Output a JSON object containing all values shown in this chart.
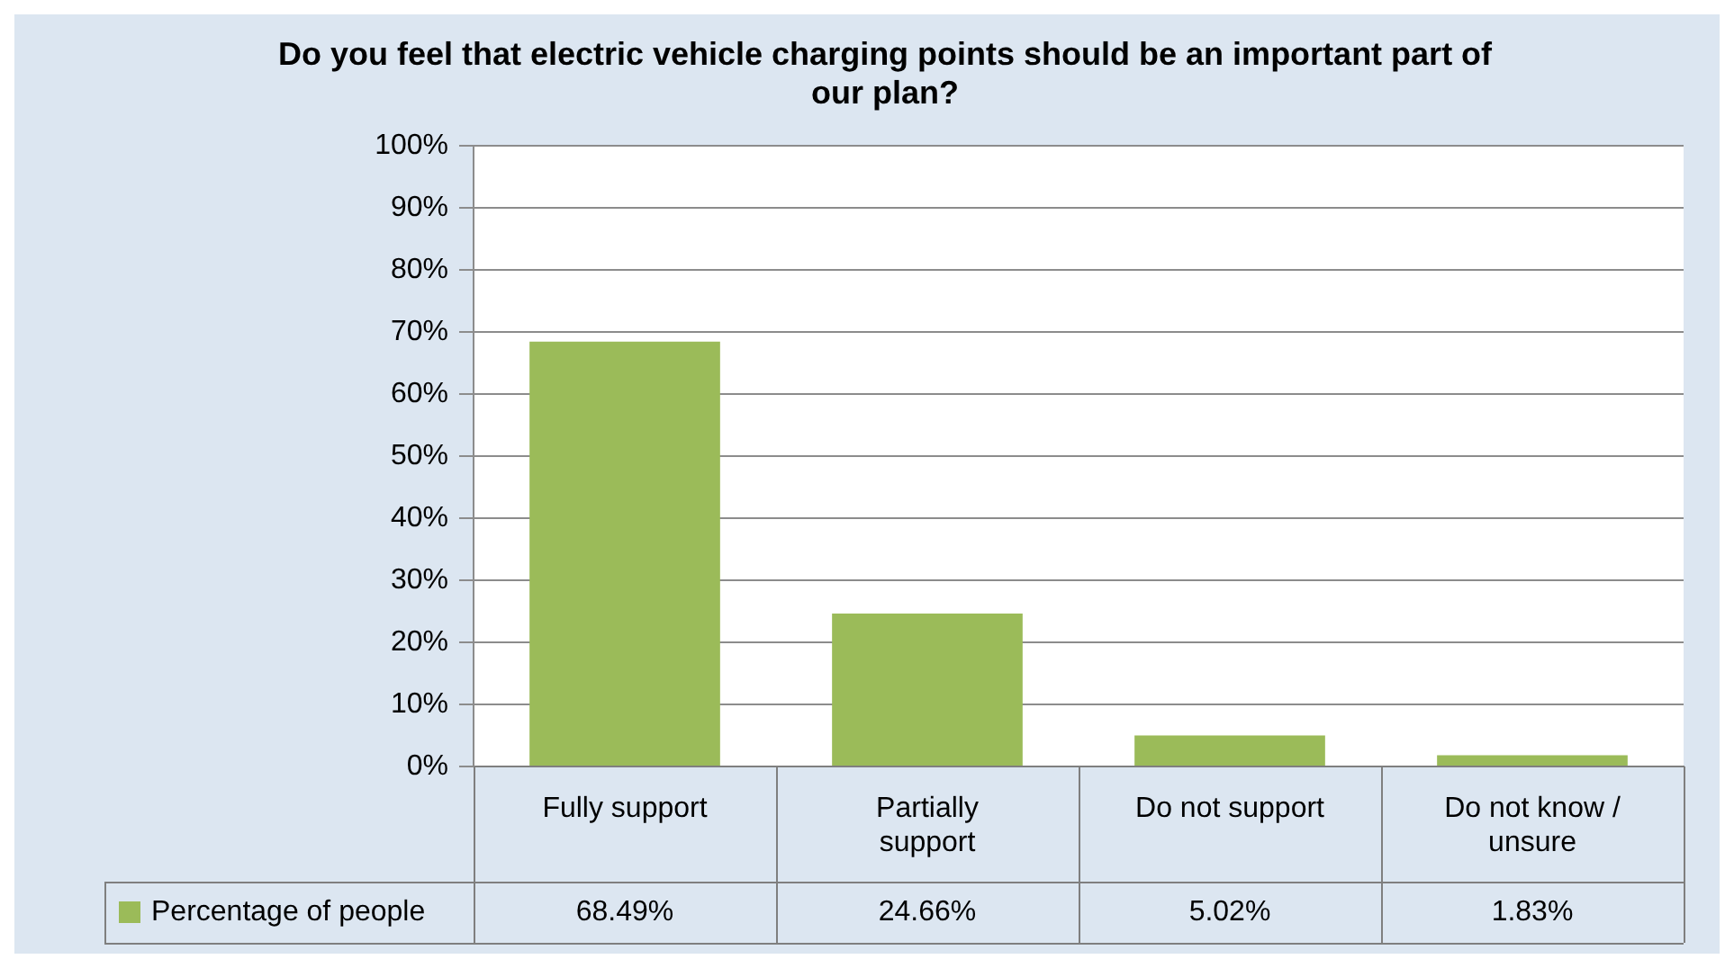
{
  "chart_data": {
    "type": "bar",
    "title": "Do you feel that electric vehicle charging points should be an important part of our plan?",
    "categories": [
      "Fully support",
      "Partially support",
      "Do not support",
      "Do not know / unsure"
    ],
    "series": [
      {
        "name": "Percentage of people",
        "color": "#9bbb59",
        "values": [
          68.49,
          24.66,
          5.02,
          1.83
        ],
        "value_labels": [
          "68.49%",
          "24.66%",
          "5.02%",
          "1.83%"
        ]
      }
    ],
    "ylim": [
      0,
      100
    ],
    "yticks": [
      {
        "value": 0,
        "label": "0%"
      },
      {
        "value": 10,
        "label": "10%"
      },
      {
        "value": 20,
        "label": "20%"
      },
      {
        "value": 30,
        "label": "30%"
      },
      {
        "value": 40,
        "label": "40%"
      },
      {
        "value": 50,
        "label": "50%"
      },
      {
        "value": 60,
        "label": "60%"
      },
      {
        "value": 70,
        "label": "70%"
      },
      {
        "value": 80,
        "label": "80%"
      },
      {
        "value": 90,
        "label": "90%"
      },
      {
        "value": 100,
        "label": "100%"
      }
    ],
    "grid": "y",
    "legend": "bottom"
  }
}
